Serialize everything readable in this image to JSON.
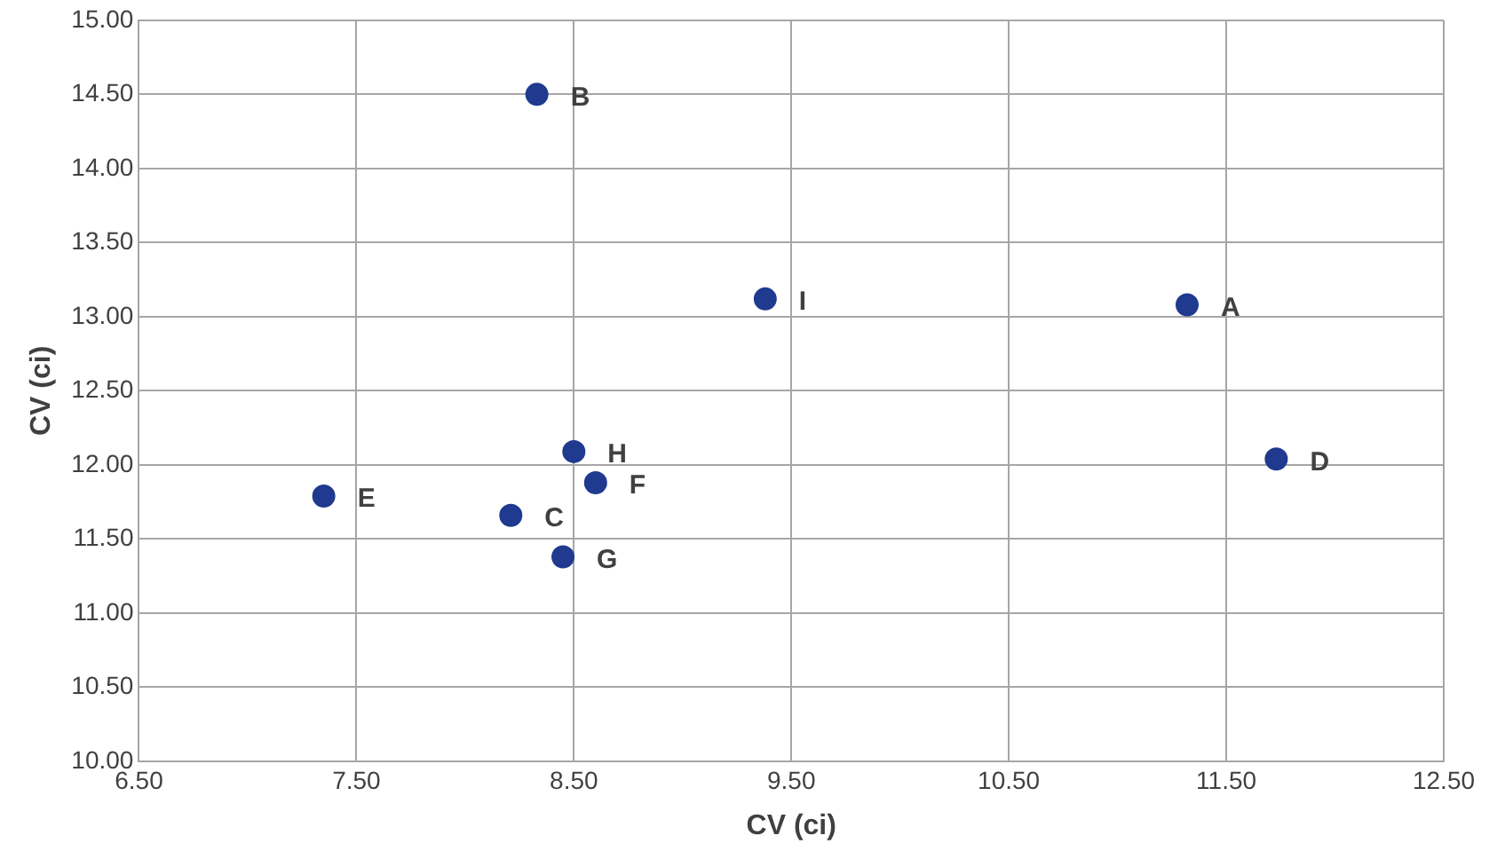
{
  "chart_data": {
    "type": "scatter",
    "xlabel": "CV (ci)",
    "ylabel": "CV (ci)",
    "x": [
      11.32,
      8.33,
      8.21,
      11.73,
      7.35,
      8.6,
      8.45,
      8.5,
      9.38
    ],
    "series": [
      {
        "color": "#1f3a8f",
        "values": [
          13.08,
          14.5,
          11.66,
          12.04,
          11.79,
          11.88,
          11.38,
          12.09,
          13.12
        ]
      }
    ],
    "xlim": [
      6.5,
      12.5
    ],
    "xticks": [
      {
        "value": 6.5,
        "label": "6.50"
      },
      {
        "value": 7.5,
        "label": "7.50"
      },
      {
        "value": 8.5,
        "label": "8.50"
      },
      {
        "value": 9.5,
        "label": "9.50"
      },
      {
        "value": 10.5,
        "label": "10.50"
      },
      {
        "value": 11.5,
        "label": "11.50"
      },
      {
        "value": 12.5,
        "label": "12.50"
      }
    ],
    "ylim": [
      10,
      15
    ],
    "yticks": [
      {
        "value": 10,
        "label": "10.00"
      },
      {
        "value": 10.5,
        "label": "10.50"
      },
      {
        "value": 11,
        "label": "11.00"
      },
      {
        "value": 11.5,
        "label": "11.50"
      },
      {
        "value": 12,
        "label": "12.00"
      },
      {
        "value": 12.5,
        "label": "12.50"
      },
      {
        "value": 13,
        "label": "13.00"
      },
      {
        "value": 13.5,
        "label": "13.50"
      },
      {
        "value": 14,
        "label": "14.00"
      },
      {
        "value": 14.5,
        "label": "14.50"
      },
      {
        "value": 15,
        "label": "15.00"
      }
    ],
    "annotations": [
      {
        "text": "A",
        "x": 11.32,
        "y": 13.08
      },
      {
        "text": "B",
        "x": 8.33,
        "y": 14.5
      },
      {
        "text": "C",
        "x": 8.21,
        "y": 11.66
      },
      {
        "text": "D",
        "x": 11.73,
        "y": 12.04
      },
      {
        "text": "E",
        "x": 7.35,
        "y": 11.79
      },
      {
        "text": "F",
        "x": 8.6,
        "y": 11.88
      },
      {
        "text": "G",
        "x": 8.45,
        "y": 11.38
      },
      {
        "text": "H",
        "x": 8.5,
        "y": 12.09
      },
      {
        "text": "I",
        "x": 9.38,
        "y": 13.12
      }
    ],
    "grid": true,
    "marker": "circle",
    "legend": false
  }
}
